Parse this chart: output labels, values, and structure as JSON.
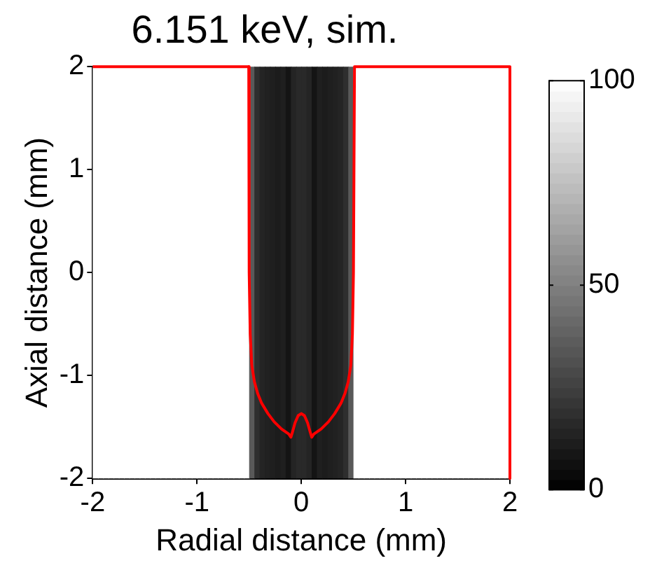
{
  "chart_data": {
    "type": "heatmap",
    "title": "6.151 keV, sim.",
    "xlabel": "Radial distance (mm)",
    "ylabel": "Axial distance (mm)",
    "x": [
      -1.975,
      -1.925,
      -1.875,
      -1.825,
      -1.775,
      -1.725,
      -1.675,
      -1.625,
      -1.575,
      -1.525,
      -1.475,
      -1.425,
      -1.375,
      -1.325,
      -1.275,
      -1.225,
      -1.175,
      -1.125,
      -1.075,
      -1.025,
      -0.975,
      -0.925,
      -0.875,
      -0.825,
      -0.775,
      -0.725,
      -0.675,
      -0.625,
      -0.575,
      -0.525,
      -0.475,
      -0.425,
      -0.375,
      -0.325,
      -0.275,
      -0.225,
      -0.175,
      -0.125,
      -0.075,
      -0.025,
      0.025,
      0.075,
      0.125,
      0.175,
      0.225,
      0.275,
      0.325,
      0.375,
      0.425,
      0.475,
      0.525,
      0.575,
      0.625,
      0.675,
      0.725,
      0.775,
      0.825,
      0.875,
      0.925,
      0.975,
      1.025,
      1.075,
      1.125,
      1.175,
      1.225,
      1.275,
      1.325,
      1.375,
      1.425,
      1.475,
      1.525,
      1.575,
      1.625,
      1.675,
      1.725,
      1.775,
      1.825,
      1.875,
      1.925,
      1.975
    ],
    "cells": [
      [
        100,
        100,
        100,
        100,
        100,
        100,
        100,
        100,
        100,
        100,
        100,
        100,
        100,
        100,
        100,
        100,
        100,
        100,
        100,
        100,
        100,
        100,
        100,
        100,
        100,
        100,
        100,
        100,
        100,
        100,
        35,
        18,
        14,
        13,
        12,
        11,
        12,
        8,
        14,
        16,
        16,
        14,
        8,
        12,
        11,
        12,
        13,
        14,
        18,
        35,
        100,
        100,
        100,
        100,
        100,
        100,
        100,
        100,
        100,
        100,
        100,
        100,
        100,
        100,
        100,
        100,
        100,
        100,
        100,
        100,
        100,
        100,
        100,
        100,
        100,
        100,
        100,
        100,
        100,
        100
      ]
    ],
    "clim": [
      0,
      100
    ],
    "cticks": [
      0,
      50,
      100
    ],
    "xlim": [
      -2,
      2
    ],
    "xticks": [
      -2,
      -1,
      0,
      1,
      2
    ],
    "ylim": [
      -2,
      2
    ],
    "yticks": [
      -2,
      -1,
      0,
      1,
      2
    ],
    "grid": false,
    "legend": false,
    "series": [
      {
        "type": "line",
        "color": "#ff0000",
        "marker": "none",
        "x": [
          -2,
          -0.504,
          -0.5,
          -0.49,
          -0.475,
          -0.45,
          -0.42,
          -0.38,
          -0.32,
          -0.26,
          -0.19,
          -0.12,
          -0.1,
          -0.085,
          -0.06,
          -0.03,
          0,
          0.03,
          0.06,
          0.085,
          0.1,
          0.12,
          0.19,
          0.26,
          0.32,
          0.38,
          0.42,
          0.45,
          0.475,
          0.49,
          0.5,
          0.51,
          2,
          2
        ],
        "values": [
          2,
          2,
          0,
          -0.6,
          -0.9,
          -1.06,
          -1.17,
          -1.27,
          -1.37,
          -1.45,
          -1.52,
          -1.57,
          -1.6,
          -1.55,
          -1.46,
          -1.39,
          -1.37,
          -1.39,
          -1.46,
          -1.55,
          -1.6,
          -1.57,
          -1.52,
          -1.45,
          -1.37,
          -1.27,
          -1.17,
          -1.06,
          -0.9,
          -0.6,
          0,
          2,
          2,
          -2
        ]
      }
    ]
  }
}
